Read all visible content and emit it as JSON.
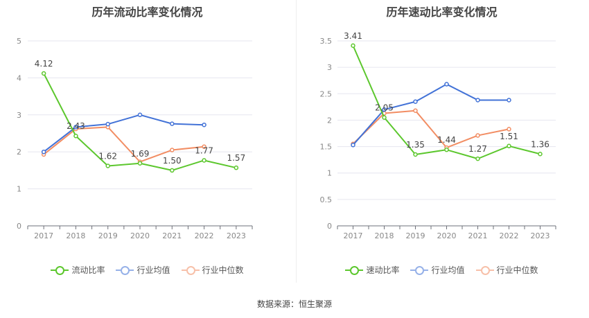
{
  "chart_data": [
    {
      "type": "line",
      "title": "历年流动比率变化情况",
      "categories": [
        "2017",
        "2018",
        "2019",
        "2020",
        "2021",
        "2022",
        "2023"
      ],
      "ylim": [
        0,
        5
      ],
      "yticks": [
        "0",
        "1",
        "2",
        "3",
        "4",
        "5"
      ],
      "grid": true,
      "legend_position": "bottom",
      "series": [
        {
          "name": "流动比率",
          "color": "#5cc72d",
          "values": [
            4.12,
            2.43,
            1.62,
            1.69,
            1.5,
            1.77,
            1.57
          ],
          "labels": [
            "4.12",
            "2.43",
            "1.62",
            "1.69",
            "1.50",
            "1.77",
            "1.57"
          ]
        },
        {
          "name": "行业均值",
          "color": "#4272d7",
          "values": [
            2.0,
            2.67,
            2.75,
            3.0,
            2.76,
            2.73,
            null
          ]
        },
        {
          "name": "行业中位数",
          "color": "#f28d63",
          "values": [
            1.93,
            2.62,
            2.67,
            1.73,
            2.05,
            2.14,
            null
          ]
        }
      ]
    },
    {
      "type": "line",
      "title": "历年速动比率变化情况",
      "categories": [
        "2017",
        "2018",
        "2019",
        "2020",
        "2021",
        "2022",
        "2023"
      ],
      "ylim": [
        0,
        3.5
      ],
      "yticks": [
        "0",
        "0.5",
        "1",
        "1.5",
        "2",
        "2.5",
        "3",
        "3.5"
      ],
      "grid": true,
      "legend_position": "bottom",
      "series": [
        {
          "name": "速动比率",
          "color": "#5cc72d",
          "values": [
            3.41,
            2.05,
            1.35,
            1.44,
            1.27,
            1.51,
            1.36
          ],
          "labels": [
            "3.41",
            "2.05",
            "1.35",
            "1.44",
            "1.27",
            "1.51",
            "1.36"
          ]
        },
        {
          "name": "行业均值",
          "color": "#4272d7",
          "values": [
            1.53,
            2.2,
            2.35,
            2.68,
            2.38,
            2.38,
            null
          ]
        },
        {
          "name": "行业中位数",
          "color": "#f28d63",
          "values": [
            1.55,
            2.13,
            2.18,
            1.48,
            1.71,
            1.83,
            null
          ]
        }
      ]
    }
  ],
  "footer": {
    "source": "数据来源：恒生聚源"
  }
}
